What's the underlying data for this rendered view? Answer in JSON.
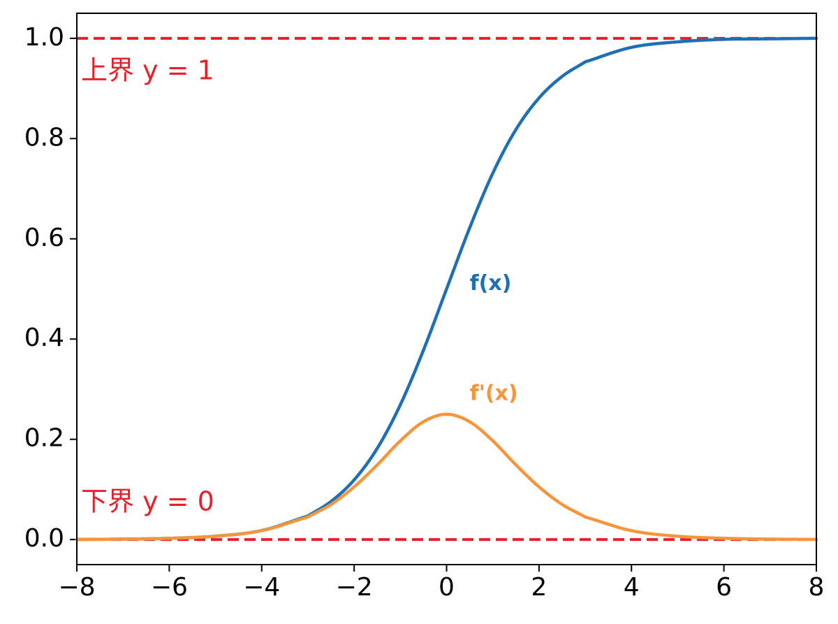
{
  "chart_data": {
    "type": "line",
    "title": "",
    "xlabel": "",
    "ylabel": "",
    "xlim": [
      -8,
      8
    ],
    "ylim": [
      -0.05,
      1.05
    ],
    "grid": false,
    "x_ticks": [
      -8,
      -6,
      -4,
      -2,
      0,
      2,
      4,
      6,
      8
    ],
    "x_tick_labels": [
      "−8",
      "−6",
      "−4",
      "−2",
      "0",
      "2",
      "4",
      "6",
      "8"
    ],
    "y_ticks": [
      0.0,
      0.2,
      0.4,
      0.6,
      0.8,
      1.0
    ],
    "y_tick_labels": [
      "0.0",
      "0.2",
      "0.4",
      "0.6",
      "0.8",
      "1.0"
    ],
    "x": [
      -8,
      -7,
      -6,
      -5,
      -4,
      -3,
      -2.5,
      -2,
      -1.5,
      -1,
      -0.5,
      0,
      0.5,
      1,
      1.5,
      2,
      2.5,
      3,
      4,
      5,
      6,
      7,
      8
    ],
    "series": [
      {
        "name": "f(x)",
        "color": "#1f6fb4",
        "values": [
          0.0003,
          0.0009,
          0.0025,
          0.0067,
          0.018,
          0.047,
          0.076,
          0.119,
          0.182,
          0.269,
          0.378,
          0.5,
          0.622,
          0.731,
          0.818,
          0.881,
          0.924,
          0.953,
          0.982,
          0.993,
          0.998,
          0.999,
          1.0
        ]
      },
      {
        "name": "f'(x)",
        "color": "#f7953a",
        "values": [
          0.0003,
          0.0009,
          0.0025,
          0.0066,
          0.0177,
          0.045,
          0.07,
          0.105,
          0.149,
          0.197,
          0.235,
          0.25,
          0.235,
          0.197,
          0.149,
          0.105,
          0.07,
          0.045,
          0.0177,
          0.0066,
          0.0025,
          0.0009,
          0.0003
        ]
      }
    ],
    "reference_lines": [
      {
        "y": 1.0,
        "label": "上界 y = 1",
        "color": "#e8202a",
        "style": "dashed"
      },
      {
        "y": 0.0,
        "label": "下界 y = 0",
        "color": "#e8202a",
        "style": "dashed"
      }
    ],
    "annotations": [
      {
        "text": "f(x)",
        "x": 0.5,
        "y": 0.51,
        "color": "#1f6fb4"
      },
      {
        "text": "f'(x)",
        "x": 0.5,
        "y": 0.29,
        "color": "#f7953a"
      }
    ]
  }
}
